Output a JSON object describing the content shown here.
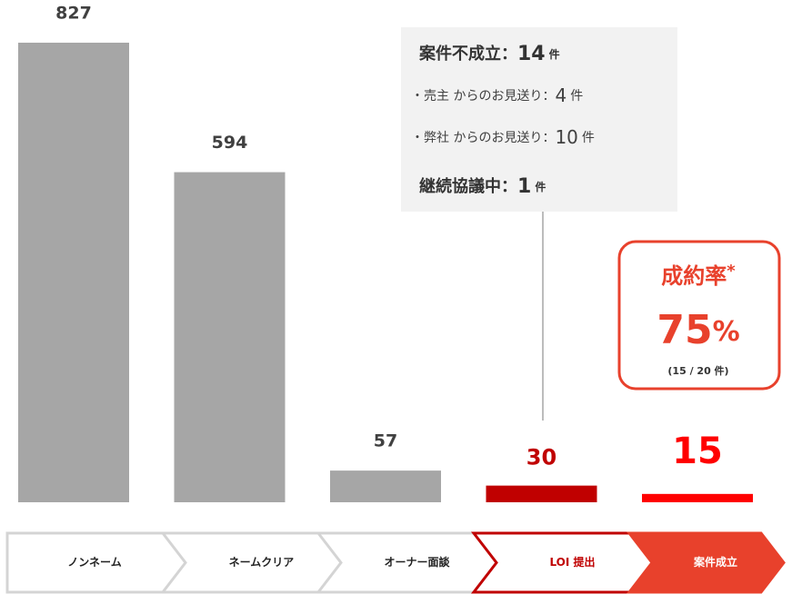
{
  "chart_data": {
    "type": "bar",
    "categories": [
      "ノンネーム",
      "ネームクリア",
      "オーナー面談",
      "LOI 提出",
      "案件成立"
    ],
    "values": [
      827,
      594,
      57,
      30,
      15
    ],
    "colors": [
      "#a6a6a6",
      "#a6a6a6",
      "#a6a6a6",
      "#c00000",
      "#ff0000"
    ],
    "label_colors": [
      "#404040",
      "#404040",
      "#404040",
      "#c00000",
      "#ff0000"
    ],
    "annotation": [
      {
        "text": "案件不成立：",
        "count": 14,
        "unit": "件",
        "style": "heading"
      },
      {
        "text": "・売主 からのお見送り：",
        "count": 4,
        "unit": "件",
        "style": "item"
      },
      {
        "text": "・弊社 からのお見送り：",
        "count": 10,
        "unit": "件",
        "style": "item"
      },
      {
        "text": "継続協議中：",
        "count": 1,
        "unit": "件",
        "style": "heading"
      }
    ],
    "rate": {
      "label": "成約率",
      "mark": "*",
      "value": 75,
      "unit": "%",
      "note": "(15 / 20 件)"
    }
  }
}
